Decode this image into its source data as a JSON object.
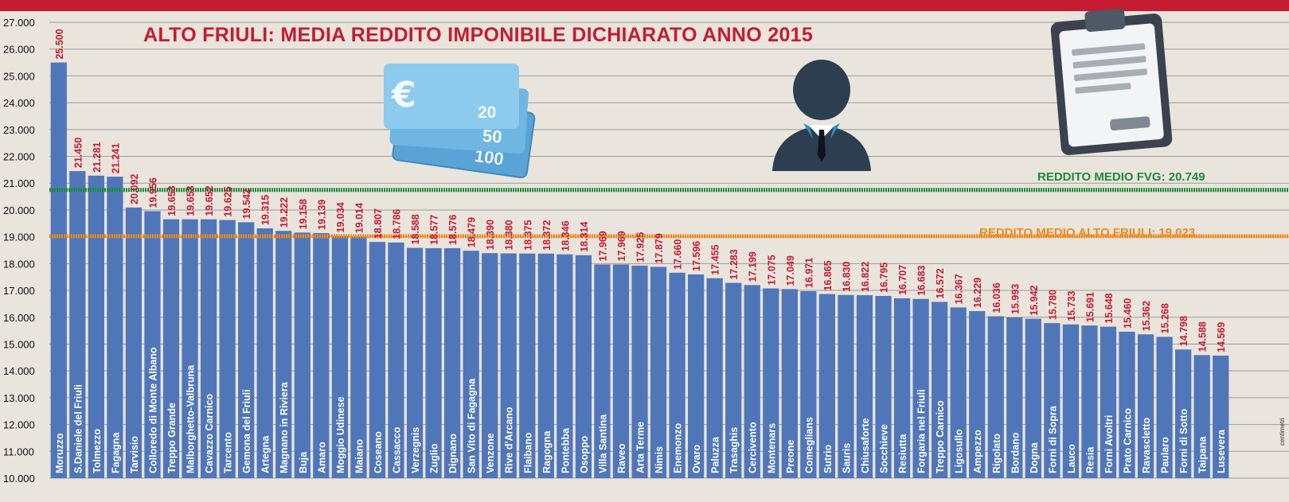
{
  "chart_data": {
    "type": "bar",
    "title": "ALTO FRIULI: MEDIA REDDITO IMPONIBILE DICHIARATO ANNO 2015",
    "ylim": [
      10000,
      27000
    ],
    "yticks": [
      "10.000",
      "11.000",
      "12.000",
      "13.000",
      "14.000",
      "15.000",
      "16.000",
      "17.000",
      "18.000",
      "19.000",
      "20.000",
      "21.000",
      "22.000",
      "23.000",
      "24.000",
      "25.000",
      "26.000",
      "27.000"
    ],
    "grid": true,
    "bar_color": "#5076ba",
    "label_color": "#c41c31",
    "categories": [
      "Moruzzo",
      "S.Daniele del Friuli",
      "Tolmezzo",
      "Fagagna",
      "Tarvisio",
      "Colloredo di Monte Albano",
      "Treppo Grande",
      "Malborghetto-Valbruna",
      "Cavazzo Carnico",
      "Tarcento",
      "Gemona del Friuli",
      "Artegna",
      "Magnano in Riviera",
      "Buja",
      "Amaro",
      "Moggio Udinese",
      "Maiano",
      "Coseano",
      "Cassacco",
      "Verzegnis",
      "Zuglio",
      "Dignano",
      "San Vito di Fagagna",
      "Venzone",
      "Rive d'Arcano",
      "Flaibano",
      "Ragogna",
      "Pontebba",
      "Osoppo",
      "Villa Santina",
      "Raveo",
      "Arta Terme",
      "Nimis",
      "Enemonzo",
      "Ovaro",
      "Paluzza",
      "Trasaghis",
      "Cercivento",
      "Montenars",
      "Preone",
      "Comeglians",
      "Sutrio",
      "Sauris",
      "Chiusaforte",
      "Socchieve",
      "Resiutta",
      "Forgaria nel Friuli",
      "Treppo Carnico",
      "Ligosullo",
      "Ampezzo",
      "Rigolato",
      "Bordano",
      "Dogna",
      "Forni di Sopra",
      "Lauco",
      "Resia",
      "Forni Avoltri",
      "Prato Carnico",
      "Ravascletto",
      "Paularo",
      "Forni di Sotto",
      "Taipana",
      "Lusevera"
    ],
    "values": [
      25500,
      21450,
      21281,
      21241,
      20092,
      19956,
      19653,
      19653,
      19652,
      19625,
      19542,
      19315,
      19222,
      19158,
      19139,
      19034,
      19014,
      18807,
      18786,
      18588,
      18577,
      18576,
      18479,
      18390,
      18380,
      18375,
      18372,
      18346,
      18314,
      17969,
      17969,
      17925,
      17879,
      17660,
      17596,
      17455,
      17283,
      17199,
      17075,
      17049,
      16971,
      16865,
      16830,
      16822,
      16795,
      16707,
      16683,
      16572,
      16367,
      16229,
      16036,
      15993,
      15942,
      15780,
      15733,
      15691,
      15648,
      15460,
      15362,
      15268,
      14798,
      14588,
      14569
    ],
    "value_labels": [
      "25.500",
      "21.450",
      "21.281",
      "21.241",
      "20.092",
      "19.956",
      "19.653",
      "19.653",
      "19.652",
      "19.625",
      "19.542",
      "19.315",
      "19.222",
      "19.158",
      "19.139",
      "19.034",
      "19.014",
      "18.807",
      "18.786",
      "18.588",
      "18.577",
      "18.576",
      "18.479",
      "18.390",
      "18.380",
      "18.375",
      "18.372",
      "18.346",
      "18.314",
      "17.969",
      "17.969",
      "17.925",
      "17.879",
      "17.660",
      "17.596",
      "17.455",
      "17.283",
      "17.199",
      "17.075",
      "17.049",
      "16.971",
      "16.865",
      "16.830",
      "16.822",
      "16.795",
      "16.707",
      "16.683",
      "16.572",
      "16.367",
      "16.229",
      "16.036",
      "15.993",
      "15.942",
      "15.780",
      "15.733",
      "15.691",
      "15.648",
      "15.460",
      "15.362",
      "15.268",
      "14.798",
      "14.588",
      "14.569"
    ],
    "reference_lines": [
      {
        "label": "REDDITO MEDIO FVG: 20.749",
        "value": 20749,
        "color": "#1e8a3a"
      },
      {
        "label": "REDDITO MEDIO ALTO FRIULI: 19.023",
        "value": 19023,
        "color": "#f08a1c"
      }
    ]
  },
  "credit": "centimetri"
}
